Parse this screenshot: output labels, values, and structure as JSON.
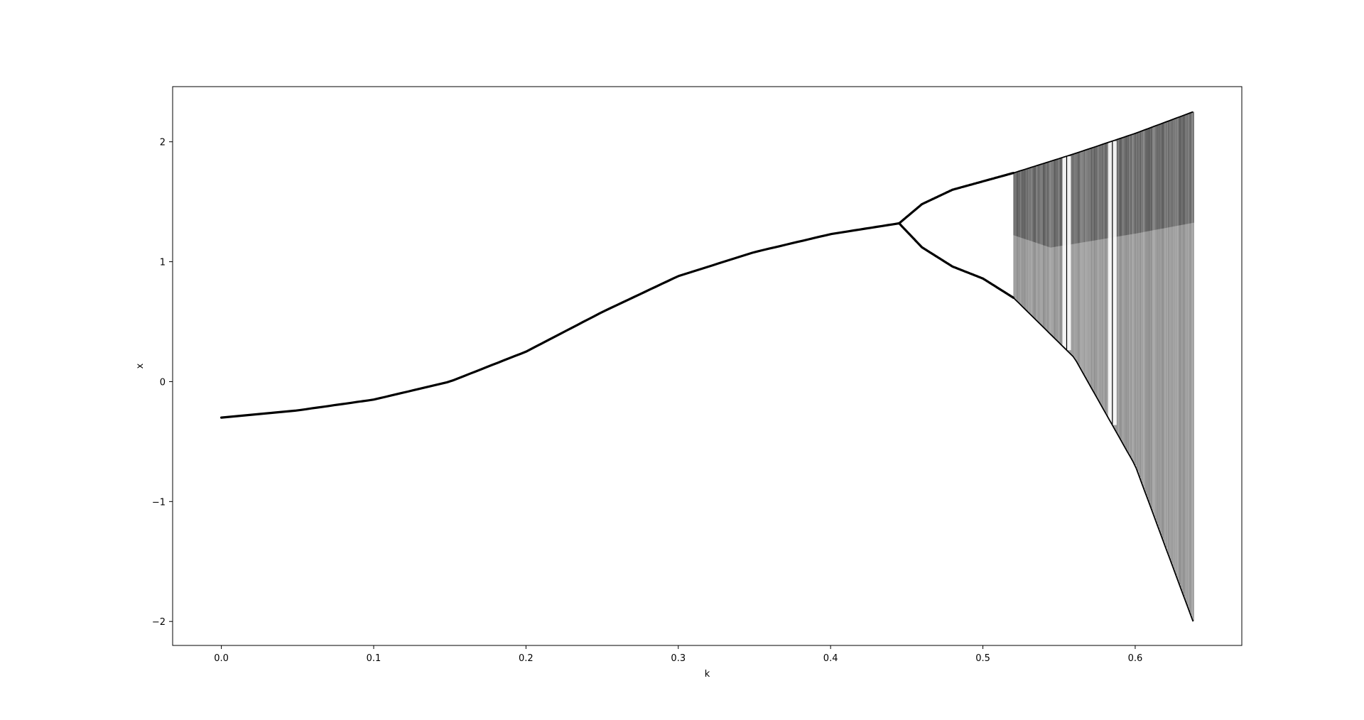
{
  "chart_data": {
    "type": "scatter",
    "subtype": "bifurcation-diagram",
    "title": "",
    "xlabel": "k",
    "ylabel": "x",
    "xlim": [
      -0.032,
      0.67
    ],
    "ylim": [
      -2.2,
      2.46
    ],
    "xticks": [
      0.0,
      0.1,
      0.2,
      0.3,
      0.4,
      0.5,
      0.6
    ],
    "xtick_labels": [
      "0.0",
      "0.1",
      "0.2",
      "0.3",
      "0.4",
      "0.5",
      "0.6"
    ],
    "yticks": [
      -2,
      -1,
      0,
      1,
      2
    ],
    "ytick_labels": [
      "−2",
      "−1",
      "0",
      "1",
      "2"
    ],
    "grid": false,
    "legend": "none",
    "marker_color": "#000000",
    "k_range": [
      0.0,
      0.638
    ],
    "branches": [
      {
        "regime": "fixed-point",
        "points": [
          [
            0.0,
            -0.3
          ],
          [
            0.05,
            -0.24
          ],
          [
            0.1,
            -0.15
          ],
          [
            0.15,
            0.0
          ],
          [
            0.2,
            0.25
          ],
          [
            0.25,
            0.58
          ],
          [
            0.3,
            0.88
          ],
          [
            0.35,
            1.08
          ],
          [
            0.4,
            1.23
          ],
          [
            0.445,
            1.32
          ]
        ]
      },
      {
        "regime": "period-2-upper",
        "points": [
          [
            0.445,
            1.32
          ],
          [
            0.46,
            1.48
          ],
          [
            0.48,
            1.6
          ],
          [
            0.5,
            1.67
          ],
          [
            0.52,
            1.74
          ]
        ]
      },
      {
        "regime": "period-2-lower",
        "points": [
          [
            0.445,
            1.32
          ],
          [
            0.46,
            1.12
          ],
          [
            0.48,
            0.96
          ],
          [
            0.5,
            0.86
          ],
          [
            0.52,
            0.7
          ]
        ]
      }
    ],
    "chaotic_envelope": {
      "k_start": 0.52,
      "upper": [
        [
          0.52,
          1.74
        ],
        [
          0.56,
          1.9
        ],
        [
          0.6,
          2.07
        ],
        [
          0.638,
          2.25
        ]
      ],
      "lower": [
        [
          0.52,
          0.7
        ],
        [
          0.56,
          0.2
        ],
        [
          0.6,
          -0.7
        ],
        [
          0.638,
          -2.0
        ]
      ]
    },
    "periodic_windows_k": [
      0.555,
      0.585
    ]
  }
}
